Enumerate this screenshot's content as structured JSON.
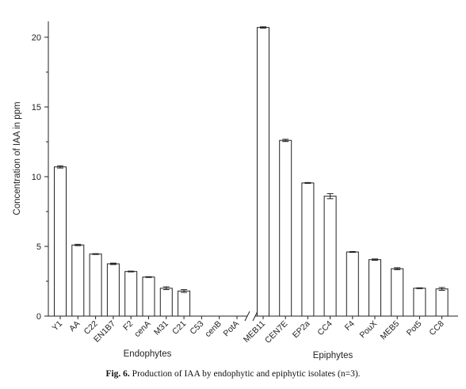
{
  "chart_data": {
    "type": "bar",
    "ylabel": "Concentration of IAA in ppm",
    "ylim": [
      0,
      21.5
    ],
    "yticks": [
      "0",
      "5",
      "10",
      "15",
      "20"
    ],
    "error_bars": true,
    "groups": [
      {
        "name": "Endophytes",
        "categories": [
          "Y1",
          "AA",
          "C22",
          "EN1B7",
          "F2",
          "cenA",
          "M31",
          "C21",
          "C53",
          "cenB",
          "PotA"
        ],
        "values": [
          10.7,
          5.1,
          4.45,
          3.75,
          3.2,
          2.8,
          2.0,
          1.8,
          0,
          0,
          0
        ],
        "errors": [
          0.08,
          0.05,
          0.03,
          0.05,
          0.03,
          0.03,
          0.1,
          0.1,
          0,
          0,
          0
        ]
      },
      {
        "name": "Epiphytes",
        "categories": [
          "MEB11",
          "CEN7E",
          "EP2a",
          "CC4",
          "F4",
          "PouX",
          "MEB5",
          "Pot5",
          "CC8"
        ],
        "values": [
          20.7,
          12.6,
          9.55,
          8.6,
          4.6,
          4.05,
          3.4,
          2.0,
          1.95
        ],
        "errors": [
          0.05,
          0.08,
          0.03,
          0.18,
          0.03,
          0.05,
          0.07,
          0.03,
          0.1
        ]
      }
    ],
    "axis_break": true
  },
  "caption": {
    "label": "Fig. 6.",
    "text": " Production of IAA by endophytic and epiphytic isolates (n=3)."
  }
}
